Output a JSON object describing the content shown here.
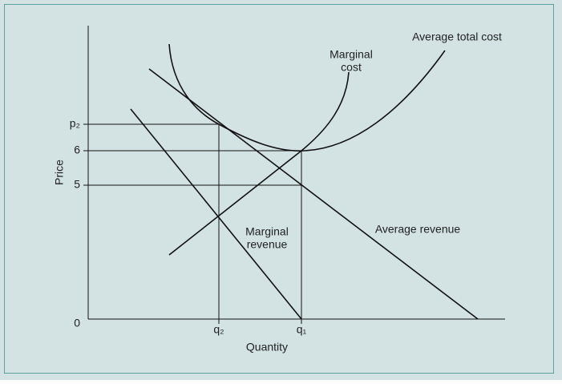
{
  "axes": {
    "y_label": "Price",
    "x_label": "Quantity",
    "y_ticks": [
      "p₂",
      "6",
      "5",
      "0"
    ],
    "x_ticks": [
      "q₂",
      "q₁"
    ]
  },
  "curves": {
    "marginal_cost": [
      "Marginal",
      "cost"
    ],
    "average_total_cost": "Average total cost",
    "average_revenue": "Average revenue",
    "marginal_revenue": [
      "Marginal",
      "revenue"
    ]
  }
}
